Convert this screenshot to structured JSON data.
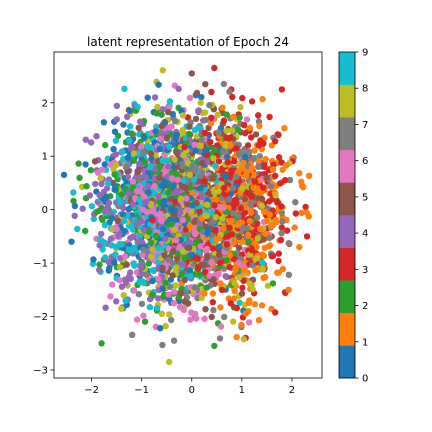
{
  "chart_data": {
    "type": "scatter",
    "title": "latent representation of Epoch 24",
    "xlabel": "",
    "ylabel": "",
    "xlim": [
      -2.75,
      2.6
    ],
    "ylim": [
      -3.15,
      2.95
    ],
    "xticks": [
      -2,
      -1,
      0,
      1,
      2
    ],
    "xtick_labels": [
      "−2",
      "−1",
      "0",
      "1",
      "2"
    ],
    "yticks": [
      -3,
      -2,
      -1,
      0,
      1,
      2
    ],
    "ytick_labels": [
      "−3",
      "−2",
      "−1",
      "0",
      "1",
      "2"
    ],
    "grid": false,
    "colorbar": {
      "cmap": "tab10",
      "min": 0,
      "max": 9,
      "ticks": [
        0,
        1,
        2,
        3,
        4,
        5,
        6,
        7,
        8,
        9
      ],
      "tick_labels": [
        "0",
        "1",
        "2",
        "3",
        "4",
        "5",
        "6",
        "7",
        "8",
        "9"
      ],
      "colors": [
        "#1f77b4",
        "#ff7f0e",
        "#2ca02c",
        "#d62728",
        "#9467bd",
        "#8c564b",
        "#e377c2",
        "#7f7f7f",
        "#bcbd22",
        "#17becf"
      ]
    },
    "clusters": [
      {
        "label": 0,
        "center": [
          -0.6,
          0.15
        ],
        "spread": [
          0.65,
          0.8
        ],
        "count": 330
      },
      {
        "label": 1,
        "center": [
          1.05,
          -0.1
        ],
        "spread": [
          0.5,
          0.8
        ],
        "count": 330
      },
      {
        "label": 2,
        "center": [
          -0.35,
          -0.15
        ],
        "spread": [
          0.75,
          0.85
        ],
        "count": 330
      },
      {
        "label": 3,
        "center": [
          0.85,
          0.1
        ],
        "spread": [
          0.6,
          0.85
        ],
        "count": 330
      },
      {
        "label": 4,
        "center": [
          -0.85,
          0.15
        ],
        "spread": [
          0.6,
          0.8
        ],
        "count": 330
      },
      {
        "label": 5,
        "center": [
          0.05,
          0.0
        ],
        "spread": [
          0.7,
          0.9
        ],
        "count": 330
      },
      {
        "label": 6,
        "center": [
          -0.3,
          -0.2
        ],
        "spread": [
          0.7,
          0.85
        ],
        "count": 330
      },
      {
        "label": 7,
        "center": [
          0.25,
          0.05
        ],
        "spread": [
          0.75,
          0.9
        ],
        "count": 330
      },
      {
        "label": 8,
        "center": [
          0.15,
          -0.05
        ],
        "spread": [
          0.75,
          0.9
        ],
        "count": 330
      },
      {
        "label": 9,
        "center": [
          -0.65,
          0.0
        ],
        "spread": [
          0.65,
          0.8
        ],
        "count": 330
      }
    ],
    "outliers": [
      {
        "x": -2.55,
        "y": 0.65,
        "label": 0
      },
      {
        "x": -2.4,
        "y": -0.6,
        "label": 0
      },
      {
        "x": -1.8,
        "y": -2.5,
        "label": 2
      },
      {
        "x": -0.45,
        "y": -2.85,
        "label": 8
      },
      {
        "x": 0.45,
        "y": 2.65,
        "label": 3
      },
      {
        "x": 2.3,
        "y": -0.5,
        "label": 3
      },
      {
        "x": 2.2,
        "y": 0.45,
        "label": 1
      },
      {
        "x": 0.45,
        "y": -2.55,
        "label": 2
      },
      {
        "x": 0.0,
        "y": 2.55,
        "label": 5
      },
      {
        "x": 1.8,
        "y": 2.25,
        "label": 3
      }
    ]
  }
}
